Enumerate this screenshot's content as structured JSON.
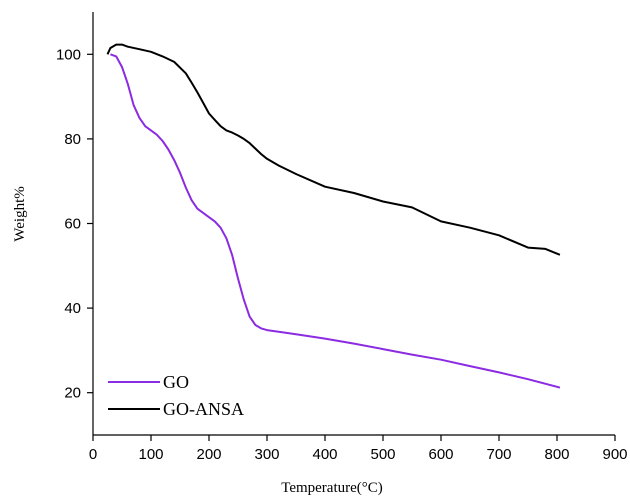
{
  "chart_data": {
    "type": "line",
    "title": "",
    "xlabel": "Temperature(°C)",
    "ylabel": "Weight%",
    "xlim": [
      0,
      900
    ],
    "ylim": [
      10,
      110
    ],
    "xticks": [
      0,
      100,
      200,
      300,
      400,
      500,
      600,
      700,
      800,
      900
    ],
    "yticks": [
      20,
      40,
      60,
      80,
      100
    ],
    "grid": false,
    "legend_position": "bottom-left",
    "series": [
      {
        "name": "GO",
        "color": "#8b2be2",
        "x": [
          30,
          40,
          50,
          60,
          70,
          80,
          90,
          100,
          110,
          120,
          130,
          140,
          150,
          160,
          170,
          180,
          190,
          200,
          210,
          220,
          230,
          240,
          250,
          260,
          270,
          280,
          290,
          300,
          320,
          350,
          400,
          450,
          500,
          550,
          600,
          650,
          700,
          750,
          800,
          805
        ],
        "y": [
          100,
          99.5,
          97,
          93,
          88,
          85,
          83,
          82,
          81,
          79.5,
          77.5,
          75,
          72,
          68.5,
          65.5,
          63.5,
          62.5,
          61.5,
          60.5,
          59,
          56.5,
          52.5,
          47,
          42,
          38,
          36,
          35.2,
          34.8,
          34.4,
          33.8,
          32.8,
          31.6,
          30.3,
          29.0,
          27.8,
          26.3,
          24.8,
          23.2,
          21.4,
          21.2
        ]
      },
      {
        "name": "GO-ANSA",
        "color": "#000000",
        "x": [
          25,
          30,
          40,
          50,
          60,
          80,
          100,
          120,
          140,
          160,
          170,
          180,
          190,
          200,
          210,
          220,
          230,
          240,
          250,
          260,
          270,
          280,
          290,
          300,
          320,
          350,
          400,
          450,
          500,
          550,
          600,
          650,
          700,
          750,
          780,
          805
        ],
        "y": [
          100,
          101.5,
          102.3,
          102.3,
          101.8,
          101.2,
          100.6,
          99.5,
          98.2,
          95.5,
          93.3,
          91,
          88.5,
          86,
          84.5,
          83,
          82,
          81.5,
          80.8,
          80,
          79,
          77.7,
          76.4,
          75.3,
          73.7,
          71.7,
          68.7,
          67.2,
          65.2,
          63.8,
          60.5,
          59,
          57.2,
          54.3,
          54,
          52.6
        ]
      }
    ]
  }
}
